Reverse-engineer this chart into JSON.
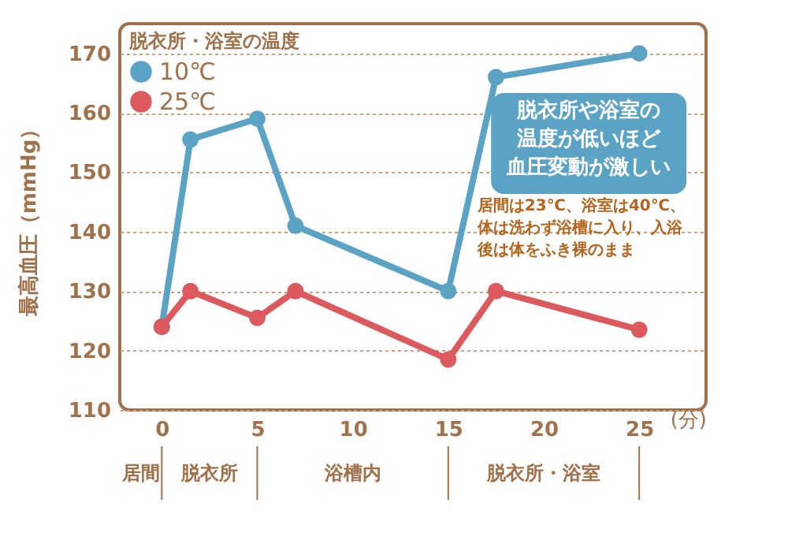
{
  "chart_data": {
    "type": "line",
    "ylabel": "最高血圧（mmHg）",
    "xlabel": "(分)",
    "legend_title": "脱衣所・浴室の温度",
    "x": [
      0,
      1.5,
      5,
      7,
      15,
      17.5,
      25
    ],
    "series": [
      {
        "name": "10℃",
        "color": "#5aa3c5",
        "values": [
          124,
          155.5,
          159,
          141,
          130,
          166,
          170
        ]
      },
      {
        "name": "25℃",
        "color": "#dc5a5e",
        "values": [
          124,
          130,
          125.5,
          130,
          118.5,
          130,
          123.5
        ]
      }
    ],
    "xlim": [
      -2.2,
      28.5
    ],
    "xticks": [
      0,
      5,
      10,
      15,
      20,
      25
    ],
    "ylim": [
      110,
      175
    ],
    "yticks": [
      110,
      120,
      130,
      140,
      150,
      160,
      170
    ],
    "grid": "y",
    "legend": "top left",
    "marker": "circle",
    "line_style": "solid",
    "annotations": [
      "脱衣所や浴室の温度が低いほど血圧変動が激しい",
      "居間は23℃、浴室は40℃、体は洗わず浴槽に入り、入浴後は体をふき裸のまま",
      "居間",
      "脱衣所",
      "浴槽内",
      "脱衣所・浴室"
    ]
  }
}
